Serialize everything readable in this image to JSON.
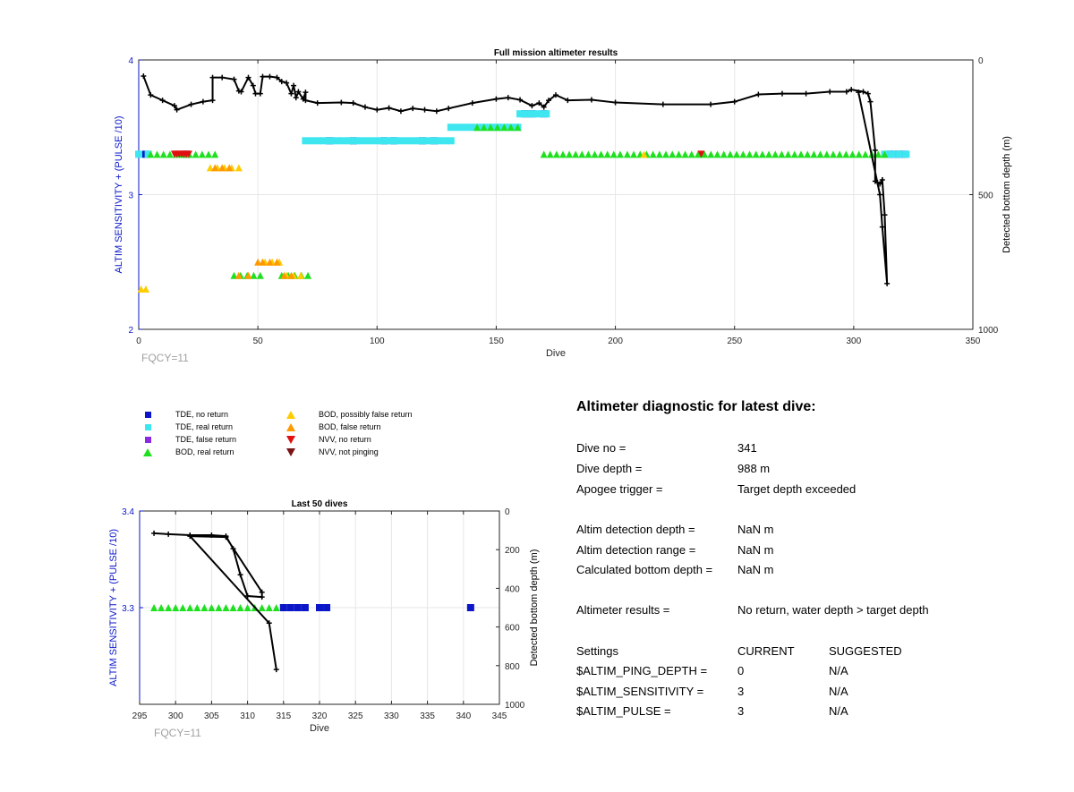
{
  "chart_data": [
    {
      "type": "scatter",
      "title": "Full mission altimeter results",
      "xlabel": "Dive",
      "ylabel": "ALTIM SENSITIVITY + (PULSE /10)",
      "y2label": "Detected bottom depth (m)",
      "xlim": [
        0,
        350
      ],
      "ylim": [
        2,
        4
      ],
      "y2lim": [
        0,
        1000
      ],
      "y2_reversed": true,
      "xticks": [
        "0",
        "50",
        "100",
        "150",
        "200",
        "250",
        "300",
        "350"
      ],
      "yticks": [
        "2",
        "3",
        "4"
      ],
      "y2ticks": [
        "0",
        "500",
        "1000"
      ],
      "grid": true,
      "footnote": "FQCY=11",
      "series": [
        {
          "name": "TDE, no return",
          "color": "#0a16c8",
          "marker": "square",
          "points": [
            [
              3,
              3.3
            ],
            [
              20,
              3.3
            ],
            [
              80,
              3.4
            ],
            [
              90,
              3.4
            ],
            [
              103,
              3.4
            ],
            [
              107,
              3.4
            ],
            [
              119,
              3.4
            ],
            [
              124,
              3.4
            ],
            [
              165,
              3.6
            ],
            [
              170,
              3.6
            ],
            [
              162,
              3.6
            ],
            [
              315,
              3.3
            ],
            [
              317,
              3.3
            ],
            [
              319,
              3.3
            ],
            [
              321,
              3.3
            ]
          ]
        },
        {
          "name": "TDE, real return",
          "color": "#3ee6f0",
          "marker": "square",
          "segments": [
            [
              [
                0,
                3.3
              ],
              [
                4,
                3.3
              ]
            ],
            [
              [
                70,
                3.4
              ],
              [
                131,
                3.4
              ]
            ],
            [
              [
                131,
                3.5
              ],
              [
                159,
                3.5
              ]
            ],
            [
              [
                160,
                3.6
              ],
              [
                171,
                3.6
              ]
            ],
            [
              [
                313,
                3.3
              ],
              [
                322,
                3.3
              ]
            ]
          ]
        },
        {
          "name": "TDE, false return",
          "color": "#8a2be2",
          "marker": "square",
          "points": []
        },
        {
          "name": "BOD, real return",
          "color": "#1ee01e",
          "marker": "triangle-up",
          "segments": [
            [
              [
                5,
                3.3
              ],
              [
                32,
                3.3
              ]
            ],
            [
              [
                142,
                3.5
              ],
              [
                159,
                3.5
              ]
            ],
            [
              [
                170,
                3.3
              ],
              [
                202,
                3.3
              ]
            ],
            [
              [
                205,
                3.3
              ],
              [
                313,
                3.3
              ]
            ],
            [
              [
                40,
                2.4
              ],
              [
                51,
                2.4
              ]
            ],
            [
              [
                60,
                2.4
              ],
              [
                71,
                2.4
              ]
            ]
          ]
        },
        {
          "name": "BOD, possibly false return",
          "color": "#ffcc00",
          "marker": "triangle-up",
          "points": [
            [
              1,
              2.3
            ],
            [
              3,
              2.3
            ],
            [
              30,
              3.2
            ],
            [
              33,
              3.2
            ],
            [
              36,
              3.2
            ],
            [
              39,
              3.2
            ],
            [
              42,
              3.2
            ],
            [
              53,
              2.5
            ],
            [
              56,
              2.5
            ],
            [
              59,
              2.5
            ],
            [
              62,
              2.4
            ],
            [
              65,
              2.4
            ],
            [
              68,
              2.4
            ],
            [
              212,
              3.3
            ]
          ]
        },
        {
          "name": "BOD, false return",
          "color": "#ff9900",
          "marker": "triangle-up",
          "points": [
            [
              32,
              3.2
            ],
            [
              35,
              3.2
            ],
            [
              38,
              3.2
            ],
            [
              50,
              2.5
            ],
            [
              52,
              2.5
            ],
            [
              55,
              2.5
            ],
            [
              58,
              2.5
            ],
            [
              42,
              2.4
            ],
            [
              46,
              2.4
            ],
            [
              61,
              2.4
            ],
            [
              64,
              2.4
            ]
          ]
        },
        {
          "name": "NVV, no return",
          "color": "#e01010",
          "marker": "triangle-down",
          "points": [
            [
              15,
              3.3
            ],
            [
              16,
              3.3
            ],
            [
              17,
              3.3
            ],
            [
              18,
              3.3
            ],
            [
              19,
              3.3
            ],
            [
              20,
              3.3
            ],
            [
              21,
              3.3
            ],
            [
              236,
              3.3
            ]
          ]
        },
        {
          "name": "NVV, not pinging",
          "color": "#7a1414",
          "marker": "triangle-down",
          "points": []
        },
        {
          "name": "Detected bottom depth",
          "color": "#000000",
          "marker": "plus",
          "axis": "y2",
          "points": [
            [
              2,
              60
            ],
            [
              5,
              130
            ],
            [
              10,
              150
            ],
            [
              15,
              170
            ],
            [
              16,
              185
            ],
            [
              22,
              165
            ],
            [
              27,
              155
            ],
            [
              31,
              150
            ],
            [
              31,
              65
            ],
            [
              35,
              65
            ],
            [
              40,
              72
            ],
            [
              42,
              115
            ],
            [
              43,
              118
            ],
            [
              46,
              65
            ],
            [
              48,
              95
            ],
            [
              49,
              125
            ],
            [
              51,
              125
            ],
            [
              52,
              62
            ],
            [
              55,
              62
            ],
            [
              58,
              65
            ],
            [
              60,
              80
            ],
            [
              62,
              85
            ],
            [
              64,
              125
            ],
            [
              65,
              95
            ],
            [
              66,
              140
            ],
            [
              67,
              118
            ],
            [
              69,
              145
            ],
            [
              70,
              120
            ],
            [
              70,
              150
            ],
            [
              75,
              160
            ],
            [
              85,
              158
            ],
            [
              90,
              160
            ],
            [
              95,
              175
            ],
            [
              100,
              185
            ],
            [
              105,
              178
            ],
            [
              110,
              190
            ],
            [
              115,
              180
            ],
            [
              120,
              185
            ],
            [
              125,
              190
            ],
            [
              130,
              180
            ],
            [
              140,
              160
            ],
            [
              150,
              145
            ],
            [
              155,
              140
            ],
            [
              160,
              148
            ],
            [
              165,
              170
            ],
            [
              168,
              160
            ],
            [
              170,
              175
            ],
            [
              172,
              150
            ],
            [
              175,
              130
            ],
            [
              180,
              150
            ],
            [
              190,
              148
            ],
            [
              200,
              158
            ],
            [
              220,
              165
            ],
            [
              240,
              165
            ],
            [
              250,
              155
            ],
            [
              260,
              128
            ],
            [
              270,
              125
            ],
            [
              280,
              125
            ],
            [
              290,
              118
            ],
            [
              297,
              118
            ],
            [
              299,
              110
            ],
            [
              304,
              118
            ],
            [
              306,
              125
            ],
            [
              307,
              155
            ],
            [
              309,
              335
            ],
            [
              309,
              450
            ],
            [
              310,
              455
            ],
            [
              311,
              460
            ],
            [
              312,
              445
            ],
            [
              313,
              575
            ],
            [
              314,
              830
            ],
            [
              312,
              620
            ],
            [
              311,
              500
            ],
            [
              302,
              120
            ]
          ]
        }
      ]
    },
    {
      "type": "scatter",
      "title": "Last 50 dives",
      "xlabel": "Dive",
      "ylabel": "ALTIM SENSITIVITY + (PULSE /10)",
      "y2label": "Detected bottom depth (m)",
      "xlim": [
        295,
        345
      ],
      "ylim": [
        3.2,
        3.4
      ],
      "y2lim": [
        0,
        1000
      ],
      "y2_reversed": true,
      "xticks": [
        "295",
        "300",
        "305",
        "310",
        "315",
        "320",
        "325",
        "330",
        "335",
        "340",
        "345"
      ],
      "yticks": [
        "3.3",
        "3.4"
      ],
      "y2ticks": [
        "0",
        "200",
        "400",
        "600",
        "800",
        "1000"
      ],
      "grid": true,
      "footnote": "FQCY=11",
      "series": [
        {
          "name": "BOD, real return",
          "color": "#1ee01e",
          "marker": "triangle-up",
          "points": [
            [
              297,
              3.3
            ],
            [
              298,
              3.3
            ],
            [
              299,
              3.3
            ],
            [
              300,
              3.3
            ],
            [
              301,
              3.3
            ],
            [
              302,
              3.3
            ],
            [
              303,
              3.3
            ],
            [
              304,
              3.3
            ],
            [
              305,
              3.3
            ],
            [
              306,
              3.3
            ],
            [
              307,
              3.3
            ],
            [
              308,
              3.3
            ],
            [
              309,
              3.3
            ],
            [
              310,
              3.3
            ],
            [
              311,
              3.3
            ],
            [
              312,
              3.3
            ],
            [
              313,
              3.3
            ],
            [
              314,
              3.3
            ]
          ]
        },
        {
          "name": "TDE, no return",
          "color": "#0a16c8",
          "marker": "square",
          "points": [
            [
              315,
              3.3
            ],
            [
              316,
              3.3
            ],
            [
              317,
              3.3
            ],
            [
              318,
              3.3
            ],
            [
              320,
              3.3
            ],
            [
              321,
              3.3
            ],
            [
              341,
              3.3
            ]
          ]
        },
        {
          "name": "Detected bottom depth",
          "color": "#000000",
          "marker": "plus",
          "axis": "y2",
          "points": [
            [
              297,
              115
            ],
            [
              299,
              120
            ],
            [
              302,
              125
            ],
            [
              305,
              125
            ],
            [
              307,
              130
            ],
            [
              308,
              195
            ],
            [
              309,
              330
            ],
            [
              310,
              440
            ],
            [
              312,
              445
            ],
            [
              312,
              420
            ],
            [
              307,
              135
            ],
            [
              302,
              130
            ],
            [
              313,
              580
            ],
            [
              314,
              820
            ]
          ]
        }
      ]
    }
  ],
  "legend": [
    {
      "label": "TDE, no return",
      "color": "#0a16c8",
      "marker": "square"
    },
    {
      "label": "TDE, real return",
      "color": "#3ee6f0",
      "marker": "square"
    },
    {
      "label": "TDE, false return",
      "color": "#8a2be2",
      "marker": "square"
    },
    {
      "label": "BOD, real return",
      "color": "#1ee01e",
      "marker": "triangle-up"
    },
    {
      "label": "BOD, possibly false return",
      "color": "#ffcc00",
      "marker": "triangle-up"
    },
    {
      "label": "BOD, false return",
      "color": "#ff9900",
      "marker": "triangle-up"
    },
    {
      "label": "NVV, no return",
      "color": "#e01010",
      "marker": "triangle-down"
    },
    {
      "label": "NVV, not pinging",
      "color": "#7a1414",
      "marker": "triangle-down"
    }
  ],
  "diagnostic": {
    "title": "Altimeter diagnostic for latest dive:",
    "dive_no_label": "Dive no =",
    "dive_no_value": "341",
    "dive_depth_label": "Dive depth =",
    "dive_depth_value": "988 m",
    "apogee_label": "Apogee trigger =",
    "apogee_value": "Target depth exceeded",
    "det_depth_label": "Altim detection depth =",
    "det_depth_value": "NaN m",
    "det_range_label": "Altim detection range =",
    "det_range_value": "NaN m",
    "calc_depth_label": "Calculated bottom depth =",
    "calc_depth_value": "NaN m",
    "results_label": "Altimeter results =",
    "results_value": "No return, water depth > target depth",
    "settings_label": "Settings",
    "current_label": "CURRENT",
    "suggested_label": "SUGGESTED",
    "ping_label": "$ALTIM_PING_DEPTH =",
    "ping_current": "0",
    "ping_suggested": "N/A",
    "sens_label": "$ALTIM_SENSITIVITY =",
    "sens_current": "3",
    "sens_suggested": "N/A",
    "pulse_label": "$ALTIM_PULSE =",
    "pulse_current": "3",
    "pulse_suggested": "N/A"
  },
  "colors": {
    "axis_left": "#0a16c8",
    "grid": "#e6e6e6",
    "footnote": "#a0a0a0"
  }
}
